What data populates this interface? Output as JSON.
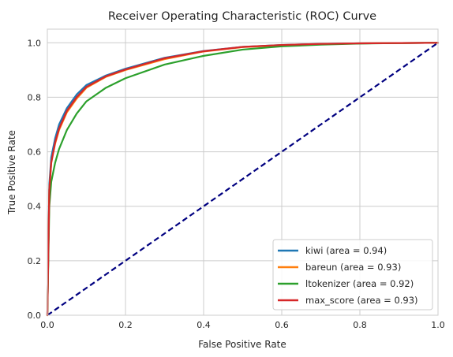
{
  "chart_data": {
    "type": "line",
    "title": "Receiver Operating Characteristic (ROC) Curve",
    "xlabel": "False Positive Rate",
    "ylabel": "True Positive Rate",
    "xlim": [
      0.0,
      1.0
    ],
    "ylim": [
      0.0,
      1.05
    ],
    "x_ticks": [
      "0.0",
      "0.2",
      "0.4",
      "0.6",
      "0.8",
      "1.0"
    ],
    "y_ticks": [
      "0.0",
      "0.2",
      "0.4",
      "0.6",
      "0.8",
      "1.0"
    ],
    "grid": true,
    "legend_position": "lower-right",
    "series": [
      {
        "name": "kiwi (area = 0.94)",
        "color": "#1f77b4",
        "x": [
          0,
          0.005,
          0.01,
          0.02,
          0.03,
          0.05,
          0.075,
          0.1,
          0.15,
          0.2,
          0.3,
          0.4,
          0.5,
          0.6,
          0.7,
          0.8,
          0.9,
          1.0
        ],
        "y": [
          0,
          0.48,
          0.58,
          0.65,
          0.7,
          0.76,
          0.81,
          0.845,
          0.88,
          0.905,
          0.945,
          0.97,
          0.985,
          0.992,
          0.996,
          0.998,
          0.999,
          1.0
        ]
      },
      {
        "name": "bareun (area = 0.93)",
        "color": "#ff7f0e",
        "x": [
          0,
          0.005,
          0.01,
          0.02,
          0.03,
          0.05,
          0.075,
          0.1,
          0.15,
          0.2,
          0.3,
          0.4,
          0.5,
          0.6,
          0.7,
          0.8,
          0.9,
          1.0
        ],
        "y": [
          0,
          0.46,
          0.56,
          0.63,
          0.68,
          0.745,
          0.795,
          0.835,
          0.875,
          0.9,
          0.94,
          0.968,
          0.984,
          0.991,
          0.995,
          0.998,
          0.999,
          1.0
        ]
      },
      {
        "name": "ltokenizer (area = 0.92)",
        "color": "#2ca02c",
        "x": [
          0,
          0.005,
          0.01,
          0.02,
          0.03,
          0.05,
          0.075,
          0.1,
          0.15,
          0.2,
          0.3,
          0.4,
          0.5,
          0.6,
          0.7,
          0.8,
          0.9,
          1.0
        ],
        "y": [
          0,
          0.4,
          0.49,
          0.56,
          0.61,
          0.68,
          0.74,
          0.785,
          0.835,
          0.87,
          0.92,
          0.952,
          0.975,
          0.987,
          0.993,
          0.997,
          0.999,
          1.0
        ]
      },
      {
        "name": "max_score (area = 0.93)",
        "color": "#d62728",
        "x": [
          0,
          0.005,
          0.01,
          0.02,
          0.03,
          0.05,
          0.075,
          0.1,
          0.15,
          0.2,
          0.3,
          0.4,
          0.5,
          0.6,
          0.7,
          0.8,
          0.9,
          1.0
        ],
        "y": [
          0,
          0.46,
          0.56,
          0.635,
          0.685,
          0.75,
          0.8,
          0.838,
          0.877,
          0.902,
          0.943,
          0.969,
          0.985,
          0.992,
          0.996,
          0.998,
          0.999,
          1.0
        ]
      }
    ],
    "reference_line": {
      "color": "#000080",
      "style": "dashed",
      "x": [
        0,
        1
      ],
      "y": [
        0,
        1
      ]
    }
  }
}
